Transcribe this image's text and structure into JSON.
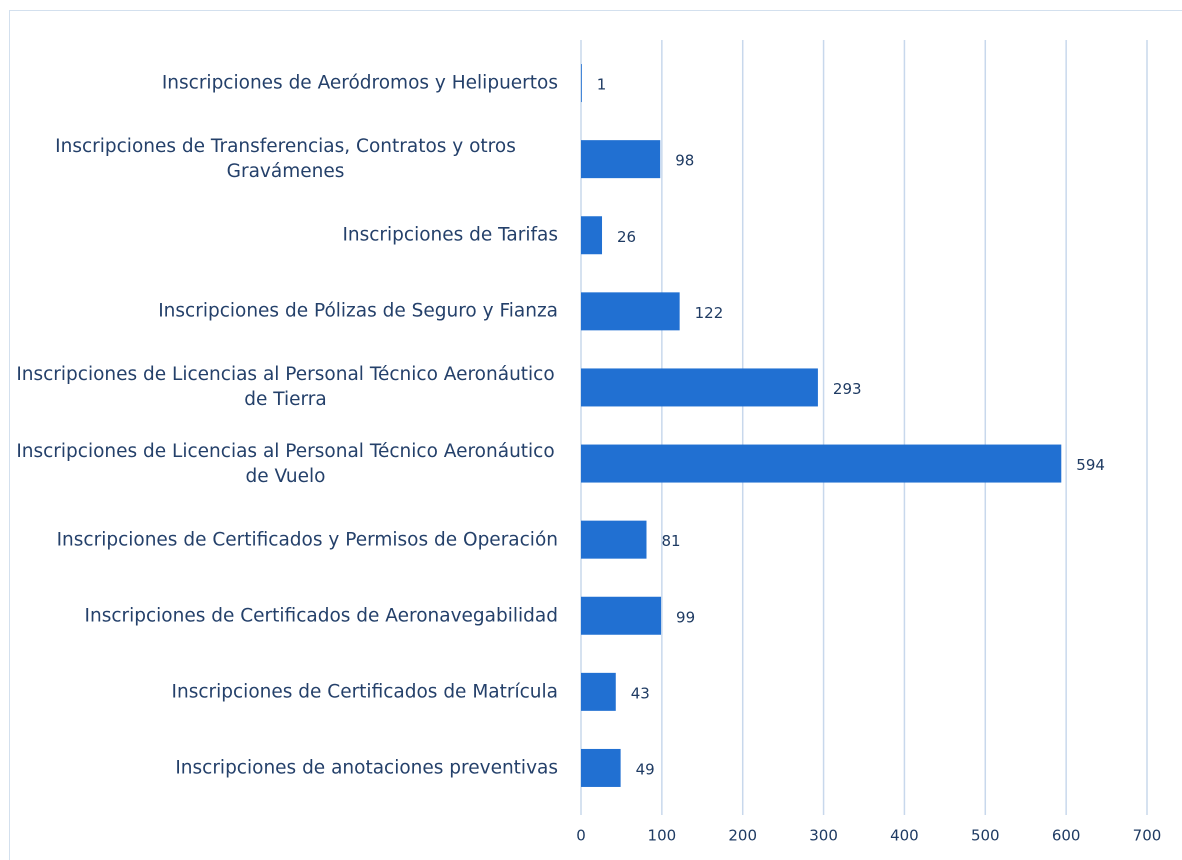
{
  "chart_data": {
    "type": "hbar",
    "categories": [
      "Inscripciones de Aeródromos y Helipuertos",
      "Inscripciones de Transferencias, Contratos y otros Gravámenes",
      "Inscripciones de Tarifas",
      "Inscripciones de Pólizas de Seguro y Fianza",
      "Inscripciones de Licencias al Personal Técnico Aeronáutico de Tierra",
      "Inscripciones de Licencias al Personal Técnico Aeronáutico de Vuelo",
      "Inscripciones de Certificados y Permisos de Operación",
      "Inscripciones de Certificados de Aeronavegabilidad",
      "Inscripciones de Certificados de Matrícula",
      "Inscripciones de anotaciones preventivas"
    ],
    "values": [
      1,
      98,
      26,
      122,
      293,
      594,
      81,
      99,
      43,
      49
    ],
    "color": "#2170d2",
    "xlim": [
      0,
      700
    ],
    "xticks": [
      0,
      100,
      200,
      300,
      400,
      500,
      600,
      700
    ],
    "grid": true
  }
}
